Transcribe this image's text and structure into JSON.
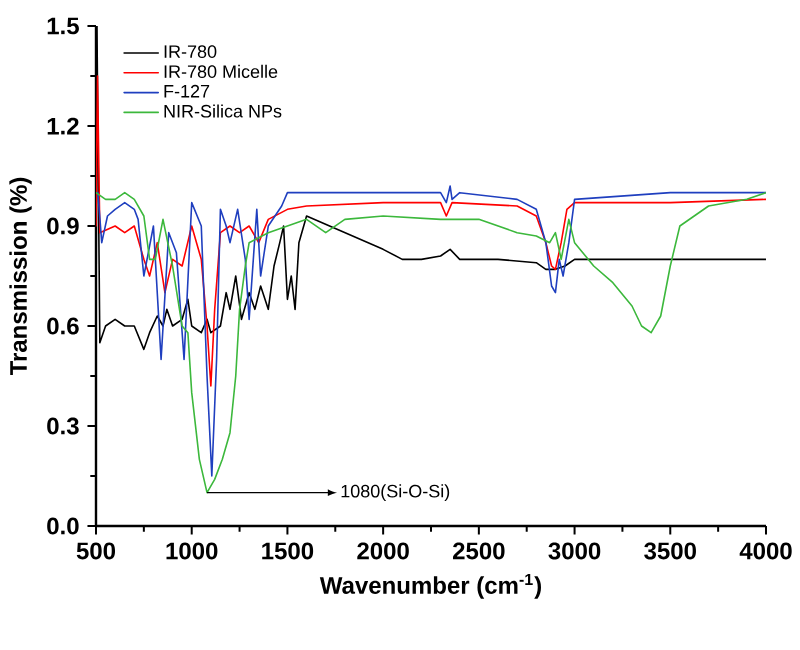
{
  "chart_data": {
    "type": "line",
    "xlabel": "Wavenumber (cm$^{-1}$)",
    "ylabel": "Transmission (%)",
    "xlim": [
      500,
      4000
    ],
    "ylim": [
      0,
      1.5
    ],
    "xticks": [
      500,
      1000,
      1500,
      2000,
      2500,
      3000,
      3500,
      4000
    ],
    "yticks": [
      {
        "value": 0,
        "label": "0.0"
      },
      {
        "value": 0.3,
        "label": "0.3"
      },
      {
        "value": 0.6,
        "label": "0.6"
      },
      {
        "value": 0.9,
        "label": "0.9"
      },
      {
        "value": 1.2,
        "label": "1.2"
      },
      {
        "value": 1.5,
        "label": "1.5"
      }
    ],
    "legend": "top left",
    "grid": false,
    "marker": "none",
    "line_style": "solid",
    "annotations": [
      {
        "text": "1080(Si-O-Si)",
        "x": 1080,
        "y": 0.1
      }
    ],
    "series": [
      {
        "name": "IR-780",
        "color": "#000000",
        "x": [
          500,
          505,
          520,
          550,
          600,
          650,
          700,
          750,
          780,
          820,
          850,
          870,
          900,
          950,
          980,
          1000,
          1050,
          1080,
          1100,
          1150,
          1180,
          1200,
          1230,
          1260,
          1300,
          1330,
          1360,
          1400,
          1430,
          1460,
          1480,
          1500,
          1520,
          1540,
          1560,
          1600,
          1800,
          2000,
          2100,
          2200,
          2300,
          2350,
          2400,
          2600,
          2800,
          2850,
          2900,
          2950,
          3000,
          3500,
          4000
        ],
        "values": [
          0.55,
          1.5,
          0.55,
          0.6,
          0.62,
          0.6,
          0.6,
          0.53,
          0.58,
          0.63,
          0.6,
          0.65,
          0.6,
          0.62,
          0.68,
          0.6,
          0.58,
          0.62,
          0.58,
          0.6,
          0.7,
          0.65,
          0.75,
          0.62,
          0.7,
          0.65,
          0.72,
          0.65,
          0.78,
          0.85,
          0.9,
          0.68,
          0.75,
          0.65,
          0.85,
          0.93,
          0.88,
          0.83,
          0.8,
          0.8,
          0.81,
          0.83,
          0.8,
          0.8,
          0.79,
          0.77,
          0.77,
          0.78,
          0.8,
          0.8,
          0.8
        ]
      },
      {
        "name": "IR-780 Micelle",
        "color": "#ff0000",
        "x": [
          500,
          508,
          520,
          600,
          650,
          700,
          750,
          780,
          820,
          860,
          900,
          950,
          1000,
          1050,
          1080,
          1100,
          1120,
          1150,
          1200,
          1250,
          1300,
          1350,
          1400,
          1500,
          1600,
          2000,
          2300,
          2330,
          2360,
          2700,
          2800,
          2850,
          2880,
          2900,
          2930,
          2960,
          3000,
          3500,
          4000
        ],
        "values": [
          0.9,
          1.35,
          0.88,
          0.9,
          0.88,
          0.9,
          0.8,
          0.75,
          0.85,
          0.7,
          0.8,
          0.78,
          0.9,
          0.8,
          0.6,
          0.42,
          0.65,
          0.88,
          0.9,
          0.88,
          0.9,
          0.85,
          0.92,
          0.95,
          0.96,
          0.97,
          0.97,
          0.93,
          0.97,
          0.96,
          0.93,
          0.85,
          0.78,
          0.77,
          0.85,
          0.95,
          0.97,
          0.97,
          0.98
        ]
      },
      {
        "name": "F-127",
        "color": "#1f3fbf",
        "x": [
          510,
          530,
          560,
          600,
          650,
          700,
          720,
          750,
          800,
          840,
          880,
          920,
          960,
          1000,
          1050,
          1080,
          1105,
          1130,
          1150,
          1180,
          1200,
          1240,
          1280,
          1300,
          1340,
          1360,
          1400,
          1470,
          1500,
          1600,
          2000,
          2300,
          2330,
          2350,
          2360,
          2400,
          2700,
          2800,
          2850,
          2880,
          2900,
          2920,
          2940,
          2970,
          3000,
          3500,
          4000
        ],
        "values": [
          1.0,
          0.85,
          0.93,
          0.95,
          0.97,
          0.95,
          0.92,
          0.75,
          0.9,
          0.5,
          0.88,
          0.82,
          0.5,
          0.97,
          0.9,
          0.45,
          0.15,
          0.5,
          0.95,
          0.9,
          0.85,
          0.95,
          0.8,
          0.62,
          0.95,
          0.75,
          0.9,
          0.96,
          1.0,
          1.0,
          1.0,
          1.0,
          0.97,
          1.02,
          0.98,
          1.0,
          0.98,
          0.95,
          0.85,
          0.72,
          0.7,
          0.8,
          0.75,
          0.85,
          0.98,
          1.0,
          1.0
        ]
      },
      {
        "name": "NIR-Silica NPs",
        "color": "#3cb83c",
        "x": [
          500,
          550,
          600,
          650,
          700,
          750,
          780,
          810,
          850,
          900,
          950,
          980,
          1000,
          1040,
          1080,
          1120,
          1160,
          1200,
          1230,
          1250,
          1280,
          1300,
          1400,
          1500,
          1600,
          1700,
          1800,
          2000,
          2300,
          2500,
          2700,
          2800,
          2870,
          2900,
          2930,
          2970,
          3000,
          3100,
          3200,
          3300,
          3350,
          3400,
          3450,
          3500,
          3550,
          3700,
          3900,
          4000
        ],
        "values": [
          1.0,
          0.98,
          0.98,
          1.0,
          0.98,
          0.93,
          0.8,
          0.8,
          0.92,
          0.78,
          0.6,
          0.58,
          0.4,
          0.2,
          0.1,
          0.14,
          0.2,
          0.28,
          0.45,
          0.65,
          0.78,
          0.85,
          0.88,
          0.9,
          0.92,
          0.88,
          0.92,
          0.93,
          0.92,
          0.92,
          0.88,
          0.87,
          0.85,
          0.88,
          0.8,
          0.92,
          0.85,
          0.78,
          0.73,
          0.66,
          0.6,
          0.58,
          0.63,
          0.78,
          0.9,
          0.96,
          0.98,
          1.0
        ]
      }
    ]
  }
}
